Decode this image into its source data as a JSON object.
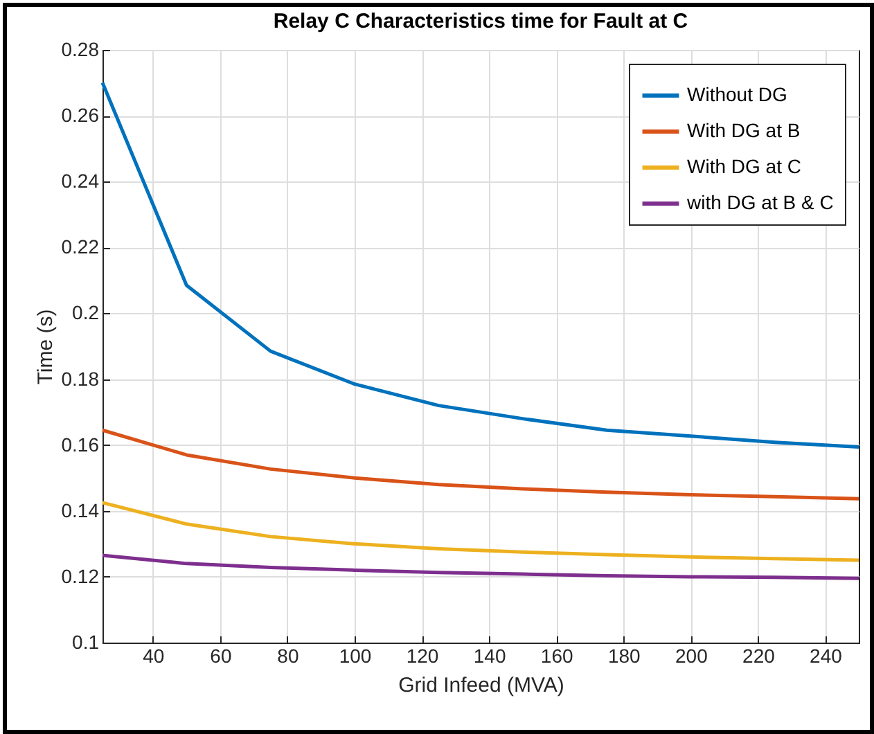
{
  "chart_data": {
    "type": "line",
    "title": "Relay C Characteristics time for Fault at C",
    "xlabel": "Grid Infeed (MVA)",
    "ylabel": "Time (s)",
    "x": [
      25,
      50,
      75,
      100,
      125,
      150,
      175,
      200,
      225,
      250
    ],
    "series": [
      {
        "name": "Without DG",
        "color": "#0072bd",
        "values": [
          0.27,
          0.2085,
          0.1885,
          0.1785,
          0.172,
          0.168,
          0.1645,
          0.1627,
          0.1608,
          0.1594
        ]
      },
      {
        "name": "With DG at B",
        "color": "#d95319",
        "values": [
          0.1645,
          0.157,
          0.1527,
          0.15,
          0.148,
          0.1467,
          0.1457,
          0.1449,
          0.1443,
          0.1437
        ]
      },
      {
        "name": "With DG at C",
        "color": "#edb120",
        "values": [
          0.1425,
          0.136,
          0.1322,
          0.13,
          0.1285,
          0.1275,
          0.1267,
          0.126,
          0.1255,
          0.125
        ]
      },
      {
        "name": "with DG at B & C",
        "color": "#7e2f8e",
        "values": [
          0.1265,
          0.124,
          0.1228,
          0.122,
          0.1213,
          0.1208,
          0.1203,
          0.12,
          0.1198,
          0.1195
        ]
      }
    ],
    "xlim": [
      25,
      250
    ],
    "xticks": [
      40,
      60,
      80,
      100,
      120,
      140,
      160,
      180,
      200,
      220,
      240
    ],
    "ylim": [
      0.1,
      0.28
    ],
    "yticks": [
      0.1,
      0.12,
      0.14,
      0.16,
      0.18,
      0.2,
      0.22,
      0.24,
      0.26,
      0.28
    ],
    "grid": true,
    "legend": "top right",
    "marker": "none",
    "line_style": "solid"
  }
}
